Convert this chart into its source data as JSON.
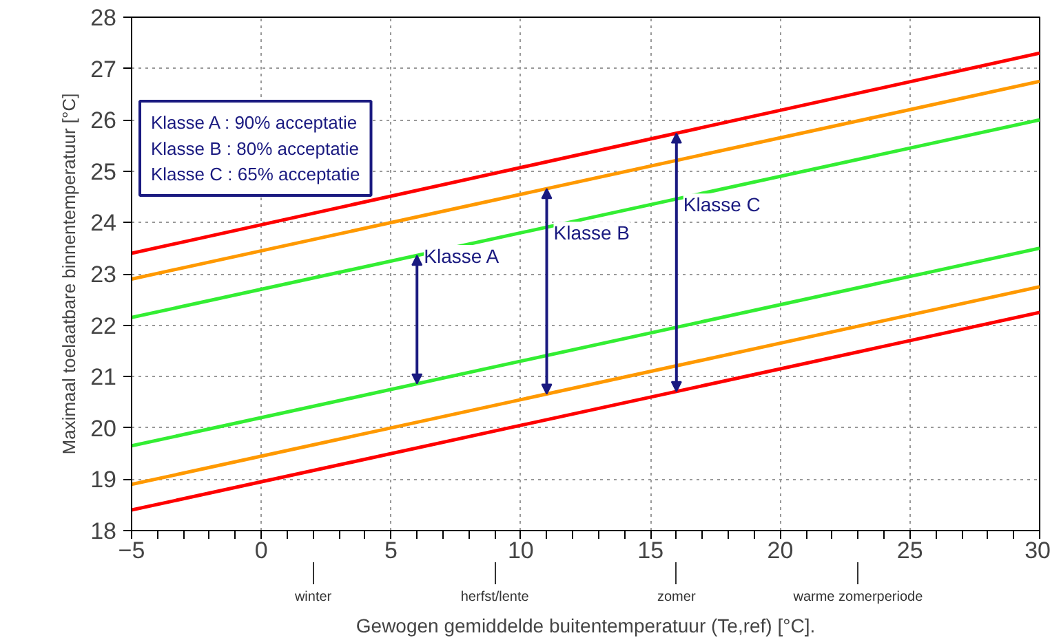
{
  "chart_data": {
    "type": "line",
    "xlabel": "Gewogen gemiddelde buitentemperatuur (Te,ref) [°C].",
    "ylabel": "Maximaal toelaatbare binnentemperatuur [°C]",
    "x": [
      -5,
      30
    ],
    "series": [
      {
        "color": "#ff0000",
        "values": [
          23.4,
          27.3
        ]
      },
      {
        "color": "#ff9900",
        "values": [
          22.9,
          26.75
        ]
      },
      {
        "color": "#33ee33",
        "values": [
          22.15,
          26.0
        ]
      },
      {
        "color": "#33ee33",
        "values": [
          19.65,
          23.5
        ]
      },
      {
        "color": "#ff9900",
        "values": [
          18.9,
          22.75
        ]
      },
      {
        "color": "#ff0000",
        "values": [
          18.4,
          22.25
        ]
      }
    ],
    "xlim": [
      -5,
      30
    ],
    "ylim": [
      18,
      28
    ],
    "xticks": [
      -5,
      0,
      5,
      10,
      15,
      20,
      25,
      30
    ],
    "yticks": [
      18,
      19,
      20,
      21,
      22,
      23,
      24,
      25,
      26,
      27,
      28
    ],
    "grid": true,
    "line_style": "solid",
    "marker": "none",
    "annotations": [
      "Klasse A : 90% acceptatie\nKlasse B : 80% acceptatie\nKlasse C : 65% acceptatie",
      "winter",
      "herfst/lente",
      "zomer",
      "warme zomerperiode",
      {
        "text": "Klasse A",
        "x": 6,
        "y": 23.35
      },
      {
        "text": "Klasse B",
        "x": 11,
        "y": 23.8
      },
      {
        "text": "Klasse C",
        "x": 16,
        "y": 24.35
      }
    ]
  }
}
